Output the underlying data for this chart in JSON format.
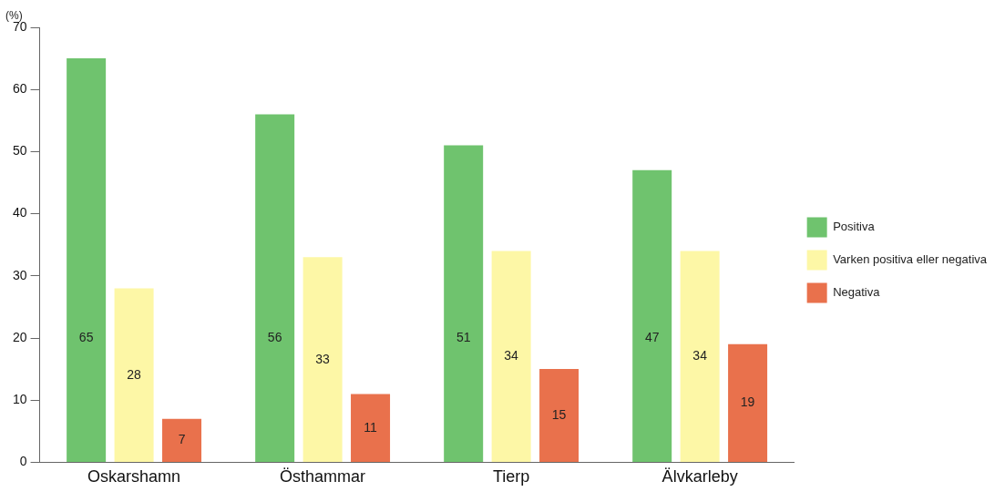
{
  "chart_data": {
    "type": "bar",
    "ylabel": "(%)",
    "categories": [
      "Oskarshamn",
      "Östhammar",
      "Tierp",
      "Älvkarleby"
    ],
    "series": [
      {
        "name": "Positiva",
        "color": "#6fc36e",
        "values": [
          65,
          56,
          51,
          47
        ]
      },
      {
        "name": "Varken positiva eller negativa",
        "color": "#fdf7a6",
        "values": [
          28,
          33,
          34,
          34
        ]
      },
      {
        "name": "Negativa",
        "color": "#e9714c",
        "values": [
          7,
          11,
          15,
          19
        ]
      }
    ],
    "ylim": [
      0,
      70
    ],
    "yticks": [
      0,
      10,
      20,
      30,
      40,
      50,
      60,
      70
    ],
    "grid": false,
    "legend": "right",
    "data_labels": true
  }
}
